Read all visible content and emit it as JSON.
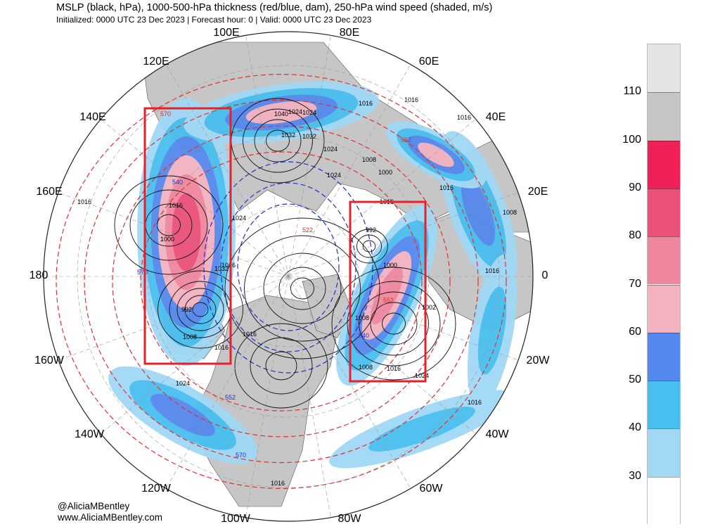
{
  "header": {
    "title": "MSLP (black, hPa), 1000-500-hPa thickness (red/blue, dam), 250-hPa wind speed (shaded, m/s)",
    "subtitle": "Initialized: 0000 UTC 23 Dec 2023 | Forecast hour: 0 | Valid: 0000 UTC 23 Dec 2023"
  },
  "map": {
    "projection": "north polar stereographic",
    "longitude_labels": [
      "100E",
      "80E",
      "120E",
      "60E",
      "140E",
      "40E",
      "160E",
      "20E",
      "180",
      "0",
      "160W",
      "20W",
      "140W",
      "40W",
      "120W",
      "60W",
      "100W",
      "80W"
    ],
    "pressure_labels": [
      "1016",
      "1024",
      "1032",
      "1040",
      "1024",
      "1016",
      "1032",
      "1024",
      "1016",
      "1008",
      "1000",
      "1024",
      "1016",
      "1016",
      "1016",
      "1024",
      "1032",
      "1000",
      "1008",
      "1016",
      "992",
      "1008",
      "1016",
      "1016",
      "1000",
      "1008",
      "1016",
      "1024",
      "1008",
      "1016",
      "1016",
      "1016",
      "1024",
      "1016",
      "992",
      "1002",
      "1016"
    ],
    "thickness_labels": [
      "570",
      "540",
      "570",
      "552",
      "552",
      "540",
      "522",
      "552",
      "570"
    ],
    "highlight_boxes": 2,
    "colors": {
      "land": "#c6c6c6",
      "box": "#e8202a",
      "mslp": "#000000",
      "thickness_warm": "#e03030",
      "thickness_cold": "#2030c8"
    }
  },
  "colorbar": {
    "units": "m/s",
    "ticks": [
      "110",
      "100",
      "90",
      "80",
      "70",
      "60",
      "50",
      "40",
      "30"
    ],
    "bins": [
      {
        "min": 110,
        "max": 120,
        "color": "#e4e4e4"
      },
      {
        "min": 100,
        "max": 110,
        "color": "#c6c6c6"
      },
      {
        "min": 90,
        "max": 100,
        "color": "#ef2055"
      },
      {
        "min": 80,
        "max": 90,
        "color": "#ea5078"
      },
      {
        "min": 70,
        "max": 80,
        "color": "#f0869e"
      },
      {
        "min": 60,
        "max": 70,
        "color": "#f2b2c0"
      },
      {
        "min": 50,
        "max": 60,
        "color": "#5588ee"
      },
      {
        "min": 40,
        "max": 50,
        "color": "#48bff0"
      },
      {
        "min": 30,
        "max": 40,
        "color": "#a0d8f6"
      },
      {
        "min": 0,
        "max": 30,
        "color": "#ffffff"
      }
    ]
  },
  "credits": {
    "handle": "@AliciaMBentley",
    "website": "www.AliciaMBentley.com"
  }
}
